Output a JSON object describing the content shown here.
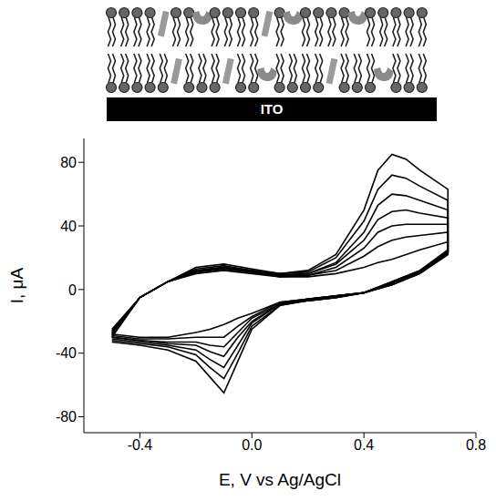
{
  "chart_data": {
    "type": "line",
    "x_label": "E, V vs Ag/AgCl",
    "y_label": "I, μA",
    "x": [
      -0.5,
      -0.4,
      -0.3,
      -0.2,
      -0.1,
      0,
      0.1,
      0.2,
      0.3,
      0.4,
      0.45,
      0.5,
      0.55,
      0.6,
      0.7,
      0.7,
      0.6,
      0.5,
      0.4,
      0.3,
      0.2,
      0.1,
      0,
      -0.05,
      -0.1,
      -0.15,
      -0.2,
      -0.3,
      -0.4,
      -0.5
    ],
    "series": [
      {
        "color": "#000000",
        "values": [
          -30,
          -5,
          5,
          14,
          16,
          13,
          10,
          12,
          22,
          50,
          75,
          85,
          82,
          75,
          63,
          25,
          12,
          5,
          -2,
          -5,
          -7,
          -10,
          -25,
          -45,
          -65,
          -55,
          -45,
          -38,
          -35,
          -33
        ]
      },
      {
        "color": "#000000",
        "values": [
          -29,
          -5,
          5,
          13,
          15,
          12,
          10,
          11,
          20,
          43,
          63,
          72,
          70,
          65,
          56,
          24,
          12,
          5,
          -2,
          -5,
          -7,
          -10,
          -23,
          -40,
          -56,
          -49,
          -41,
          -36,
          -34,
          -32
        ]
      },
      {
        "color": "#000000",
        "values": [
          -28,
          -5,
          5,
          12,
          14,
          12,
          9,
          10,
          17,
          36,
          53,
          60,
          59,
          56,
          50,
          24,
          11,
          4,
          -2,
          -5,
          -7,
          -9,
          -21,
          -35,
          -49,
          -44,
          -38,
          -35,
          -33,
          -31
        ]
      },
      {
        "color": "#000000",
        "values": [
          -27,
          -5,
          5,
          12,
          14,
          11,
          9,
          10,
          16,
          31,
          44,
          49,
          50,
          48,
          45,
          23,
          11,
          4,
          -2,
          -4,
          -6,
          -9,
          -20,
          -30,
          -42,
          -39,
          -35,
          -34,
          -32,
          -30
        ]
      },
      {
        "color": "#000000",
        "values": [
          -27,
          -5,
          5,
          11,
          13,
          11,
          9,
          9,
          14,
          26,
          36,
          40,
          41,
          41,
          41,
          23,
          11,
          4,
          -2,
          -4,
          -6,
          -9,
          -18,
          -27,
          -36,
          -35,
          -33,
          -33,
          -32,
          -30
        ]
      },
      {
        "color": "#000000",
        "values": [
          -26,
          -5,
          5,
          11,
          13,
          11,
          8,
          9,
          12,
          21,
          27,
          31,
          33,
          34,
          36,
          23,
          10,
          3,
          -2,
          -4,
          -6,
          -8,
          -17,
          -23,
          -30,
          -30,
          -30,
          -31,
          -31,
          -29
        ]
      },
      {
        "color": "#000000",
        "values": [
          -25,
          -5,
          5,
          10,
          12,
          10,
          8,
          8,
          10,
          14,
          17,
          19,
          22,
          25,
          30,
          22,
          10,
          3,
          -2,
          -4,
          -6,
          -8,
          -15,
          -18,
          -22,
          -25,
          -27,
          -30,
          -30,
          -28
        ]
      }
    ],
    "xlim": [
      -0.6,
      0.8
    ],
    "xticks": [
      -0.4,
      {
        "value": 0,
        "label": "0.0"
      },
      0.4,
      0.8
    ],
    "ylim": [
      -90,
      95
    ],
    "yticks": [
      -80,
      -40,
      0,
      40,
      80
    ],
    "grid": false
  },
  "schematic": {
    "substrate_label": "ITO"
  }
}
